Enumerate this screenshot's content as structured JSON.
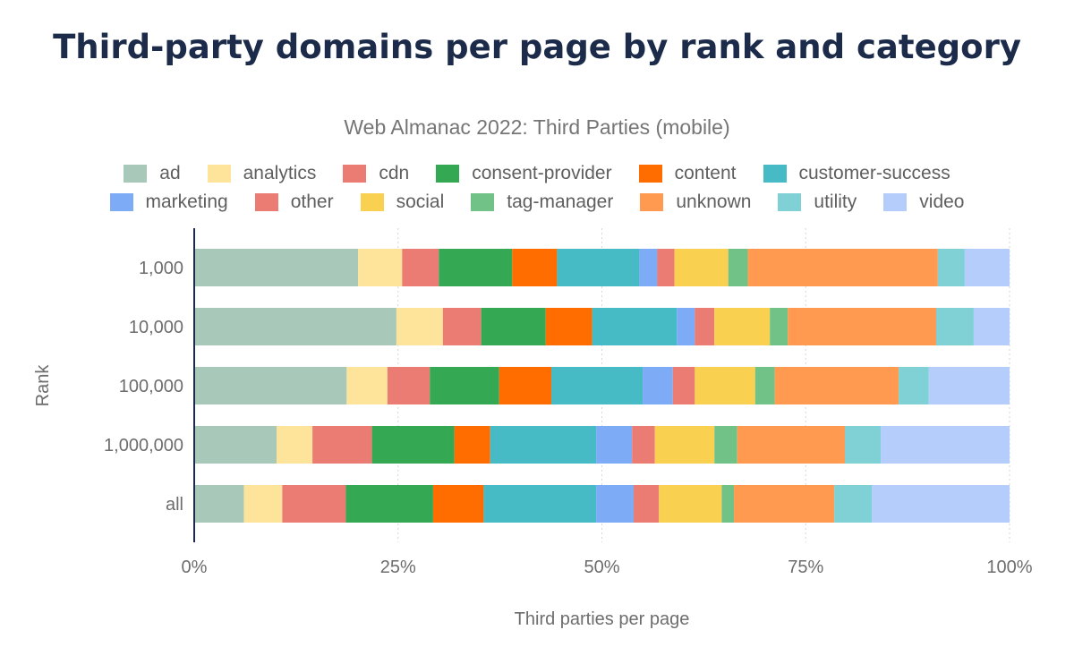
{
  "chart_data": {
    "type": "bar",
    "orientation": "horizontal",
    "stacked": "percent",
    "title": "Third-party domains per page by rank and category",
    "subtitle": "Web Almanac 2022: Third Parties (mobile)",
    "xlabel": "Third parties per page",
    "ylabel": "Rank",
    "xlim": [
      0,
      100
    ],
    "xticks": [
      "0%",
      "25%",
      "50%",
      "75%",
      "100%"
    ],
    "grid": true,
    "legend_position": "top",
    "categories": [
      "1,000",
      "10,000",
      "100,000",
      "1,000,000",
      "all"
    ],
    "series": [
      {
        "name": "ad",
        "color": "#a8c9b9",
        "values": [
          20.1,
          24.8,
          18.7,
          10.1,
          6.1
        ]
      },
      {
        "name": "analytics",
        "color": "#fee49a",
        "values": [
          5.4,
          5.7,
          5.0,
          4.4,
          4.7
        ]
      },
      {
        "name": "cdn",
        "color": "#eb7c74",
        "values": [
          4.5,
          4.7,
          5.2,
          7.3,
          7.8
        ]
      },
      {
        "name": "consent-provider",
        "color": "#35a853",
        "values": [
          9.0,
          7.9,
          8.5,
          10.1,
          10.7
        ]
      },
      {
        "name": "content",
        "color": "#ff6d00",
        "values": [
          5.5,
          5.7,
          6.4,
          4.4,
          6.2
        ]
      },
      {
        "name": "customer-success",
        "color": "#46bbc5",
        "values": [
          10.1,
          10.4,
          11.2,
          13.0,
          13.8
        ]
      },
      {
        "name": "marketing",
        "color": "#7dabf6",
        "values": [
          2.2,
          2.2,
          3.7,
          4.4,
          4.6
        ]
      },
      {
        "name": "other",
        "color": "#eb7c74",
        "values": [
          2.1,
          2.4,
          2.7,
          2.8,
          3.1
        ]
      },
      {
        "name": "social",
        "color": "#f9d04f",
        "values": [
          6.6,
          6.8,
          7.4,
          7.3,
          7.7
        ]
      },
      {
        "name": "tag-manager",
        "color": "#71c287",
        "values": [
          2.4,
          2.2,
          2.4,
          2.8,
          1.5
        ]
      },
      {
        "name": "unknown",
        "color": "#ff9a50",
        "values": [
          23.3,
          18.2,
          15.2,
          13.2,
          12.3
        ]
      },
      {
        "name": "utility",
        "color": "#7fd1d6",
        "values": [
          3.3,
          4.6,
          3.7,
          4.4,
          4.6
        ]
      },
      {
        "name": "video",
        "color": "#b4cdfa",
        "values": [
          5.5,
          4.4,
          9.9,
          15.8,
          16.9
        ]
      }
    ]
  }
}
